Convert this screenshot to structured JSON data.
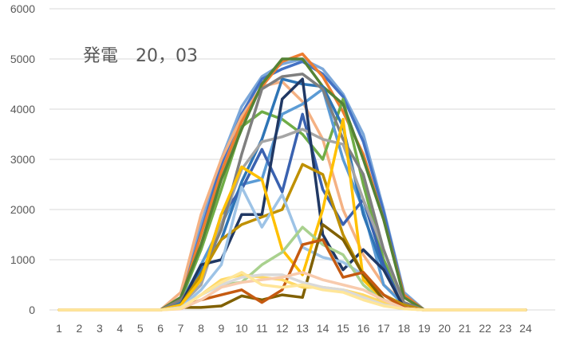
{
  "chart_data": {
    "type": "line",
    "title": "発電　20，03",
    "xlabel": "",
    "ylabel": "",
    "categories": [
      "1",
      "2",
      "3",
      "4",
      "5",
      "6",
      "7",
      "8",
      "9",
      "10",
      "11",
      "12",
      "13",
      "14",
      "15",
      "16",
      "17",
      "18",
      "19",
      "20",
      "21",
      "22",
      "23",
      "24"
    ],
    "y_ticks": [
      0,
      1000,
      2000,
      3000,
      4000,
      5000,
      6000
    ],
    "ylim": [
      0,
      6000
    ],
    "grid": true,
    "legend": "none",
    "series": [
      {
        "color": "#7ba7d9",
        "values": [
          0,
          0,
          0,
          0,
          0,
          0,
          250,
          1700,
          3000,
          4050,
          4650,
          4900,
          5000,
          4800,
          4300,
          3500,
          2000,
          350,
          0,
          0,
          0,
          0,
          0,
          0
        ]
      },
      {
        "color": "#4472c4",
        "values": [
          0,
          0,
          0,
          0,
          0,
          0,
          200,
          1550,
          2900,
          3900,
          4600,
          4800,
          4950,
          4700,
          4250,
          3350,
          1950,
          300,
          0,
          0,
          0,
          0,
          0,
          0
        ]
      },
      {
        "color": "#f4b183",
        "values": [
          0,
          0,
          0,
          0,
          0,
          0,
          350,
          1900,
          3000,
          3850,
          4450,
          4550,
          4150,
          3400,
          2000,
          1100,
          500,
          150,
          0,
          0,
          0,
          0,
          0,
          0
        ]
      },
      {
        "color": "#ed7d31",
        "values": [
          0,
          0,
          0,
          0,
          0,
          0,
          200,
          1500,
          2750,
          3750,
          4450,
          4950,
          5100,
          4650,
          3950,
          3100,
          1800,
          300,
          0,
          0,
          0,
          0,
          0,
          0
        ]
      },
      {
        "color": "#70ad47",
        "values": [
          0,
          0,
          0,
          0,
          0,
          0,
          200,
          1200,
          2400,
          3650,
          3950,
          3800,
          3500,
          3000,
          4200,
          2500,
          1000,
          150,
          0,
          0,
          0,
          0,
          0,
          0
        ]
      },
      {
        "color": "#548235",
        "values": [
          0,
          0,
          0,
          0,
          0,
          0,
          250,
          1300,
          2600,
          3600,
          4500,
          5000,
          5000,
          4450,
          4100,
          3000,
          1800,
          250,
          0,
          0,
          0,
          0,
          0,
          0
        ]
      },
      {
        "color": "#5b9bd5",
        "values": [
          0,
          0,
          0,
          0,
          0,
          0,
          150,
          900,
          1700,
          2500,
          2600,
          3900,
          4100,
          4400,
          3000,
          2000,
          500,
          100,
          0,
          0,
          0,
          0,
          0,
          0
        ]
      },
      {
        "color": "#2e75b6",
        "values": [
          0,
          0,
          0,
          0,
          0,
          0,
          150,
          800,
          1400,
          2550,
          3400,
          4600,
          4500,
          4450,
          3650,
          1900,
          800,
          100,
          0,
          0,
          0,
          0,
          0,
          0
        ]
      },
      {
        "color": "#3a62b0",
        "values": [
          0,
          0,
          0,
          0,
          0,
          0,
          100,
          600,
          1900,
          2400,
          3200,
          2350,
          3900,
          2400,
          1700,
          2200,
          900,
          50,
          0,
          0,
          0,
          0,
          0,
          0
        ]
      },
      {
        "color": "#a5a5a5",
        "values": [
          0,
          0,
          0,
          0,
          0,
          0,
          100,
          500,
          1700,
          2800,
          3350,
          3450,
          3600,
          3400,
          3300,
          2200,
          1200,
          100,
          0,
          0,
          0,
          0,
          0,
          0
        ]
      },
      {
        "color": "#7f7f7f",
        "values": [
          0,
          0,
          0,
          0,
          0,
          0,
          200,
          700,
          1600,
          3100,
          4400,
          4650,
          4700,
          4400,
          3400,
          2700,
          1200,
          150,
          0,
          0,
          0,
          0,
          0,
          0
        ]
      },
      {
        "color": "#203864",
        "values": [
          0,
          0,
          0,
          0,
          0,
          0,
          100,
          900,
          1000,
          1900,
          1900,
          4200,
          4600,
          1500,
          800,
          1200,
          800,
          50,
          0,
          0,
          0,
          0,
          0,
          0
        ]
      },
      {
        "color": "#bf9000",
        "values": [
          0,
          0,
          0,
          0,
          0,
          0,
          100,
          700,
          1400,
          1700,
          1850,
          2000,
          2900,
          2700,
          1500,
          700,
          300,
          100,
          0,
          0,
          0,
          0,
          0,
          0
        ]
      },
      {
        "color": "#9dc3e6",
        "values": [
          0,
          0,
          0,
          0,
          0,
          0,
          50,
          400,
          900,
          2450,
          1650,
          2300,
          1250,
          1050,
          950,
          700,
          300,
          50,
          0,
          0,
          0,
          0,
          0,
          0
        ]
      },
      {
        "color": "#ffc000",
        "values": [
          0,
          0,
          0,
          0,
          0,
          0,
          100,
          600,
          1900,
          2850,
          2600,
          1200,
          700,
          2000,
          3800,
          600,
          200,
          50,
          0,
          0,
          0,
          0,
          0,
          0
        ]
      },
      {
        "color": "#a9d18e",
        "values": [
          0,
          0,
          0,
          0,
          0,
          0,
          50,
          300,
          500,
          550,
          900,
          1150,
          1650,
          1300,
          1100,
          500,
          150,
          50,
          0,
          0,
          0,
          0,
          0,
          0
        ]
      },
      {
        "color": "#806000",
        "values": [
          0,
          0,
          0,
          0,
          0,
          0,
          50,
          50,
          80,
          280,
          200,
          300,
          250,
          1700,
          1400,
          700,
          200,
          30,
          0,
          0,
          0,
          0,
          0,
          0
        ]
      },
      {
        "color": "#c55a11",
        "values": [
          0,
          0,
          0,
          0,
          0,
          0,
          50,
          200,
          300,
          400,
          150,
          400,
          1300,
          1400,
          650,
          750,
          300,
          50,
          0,
          0,
          0,
          0,
          0,
          0
        ]
      },
      {
        "color": "#ffd966",
        "values": [
          0,
          0,
          0,
          0,
          0,
          0,
          50,
          300,
          600,
          700,
          650,
          600,
          450,
          450,
          400,
          300,
          150,
          30,
          0,
          0,
          0,
          0,
          0,
          0
        ]
      },
      {
        "color": "#d9d9d9",
        "values": [
          0,
          0,
          0,
          0,
          0,
          0,
          50,
          300,
          500,
          650,
          700,
          700,
          550,
          450,
          400,
          250,
          100,
          30,
          0,
          0,
          0,
          0,
          0,
          0
        ]
      },
      {
        "color": "#f8cbad",
        "values": [
          0,
          0,
          0,
          0,
          0,
          0,
          20,
          200,
          450,
          550,
          600,
          650,
          750,
          600,
          500,
          400,
          200,
          30,
          0,
          0,
          0,
          0,
          0,
          0
        ]
      },
      {
        "color": "#ffe699",
        "values": [
          0,
          0,
          0,
          0,
          0,
          0,
          30,
          300,
          550,
          750,
          500,
          450,
          500,
          400,
          350,
          200,
          80,
          20,
          0,
          0,
          0,
          0,
          0,
          0
        ]
      }
    ]
  }
}
